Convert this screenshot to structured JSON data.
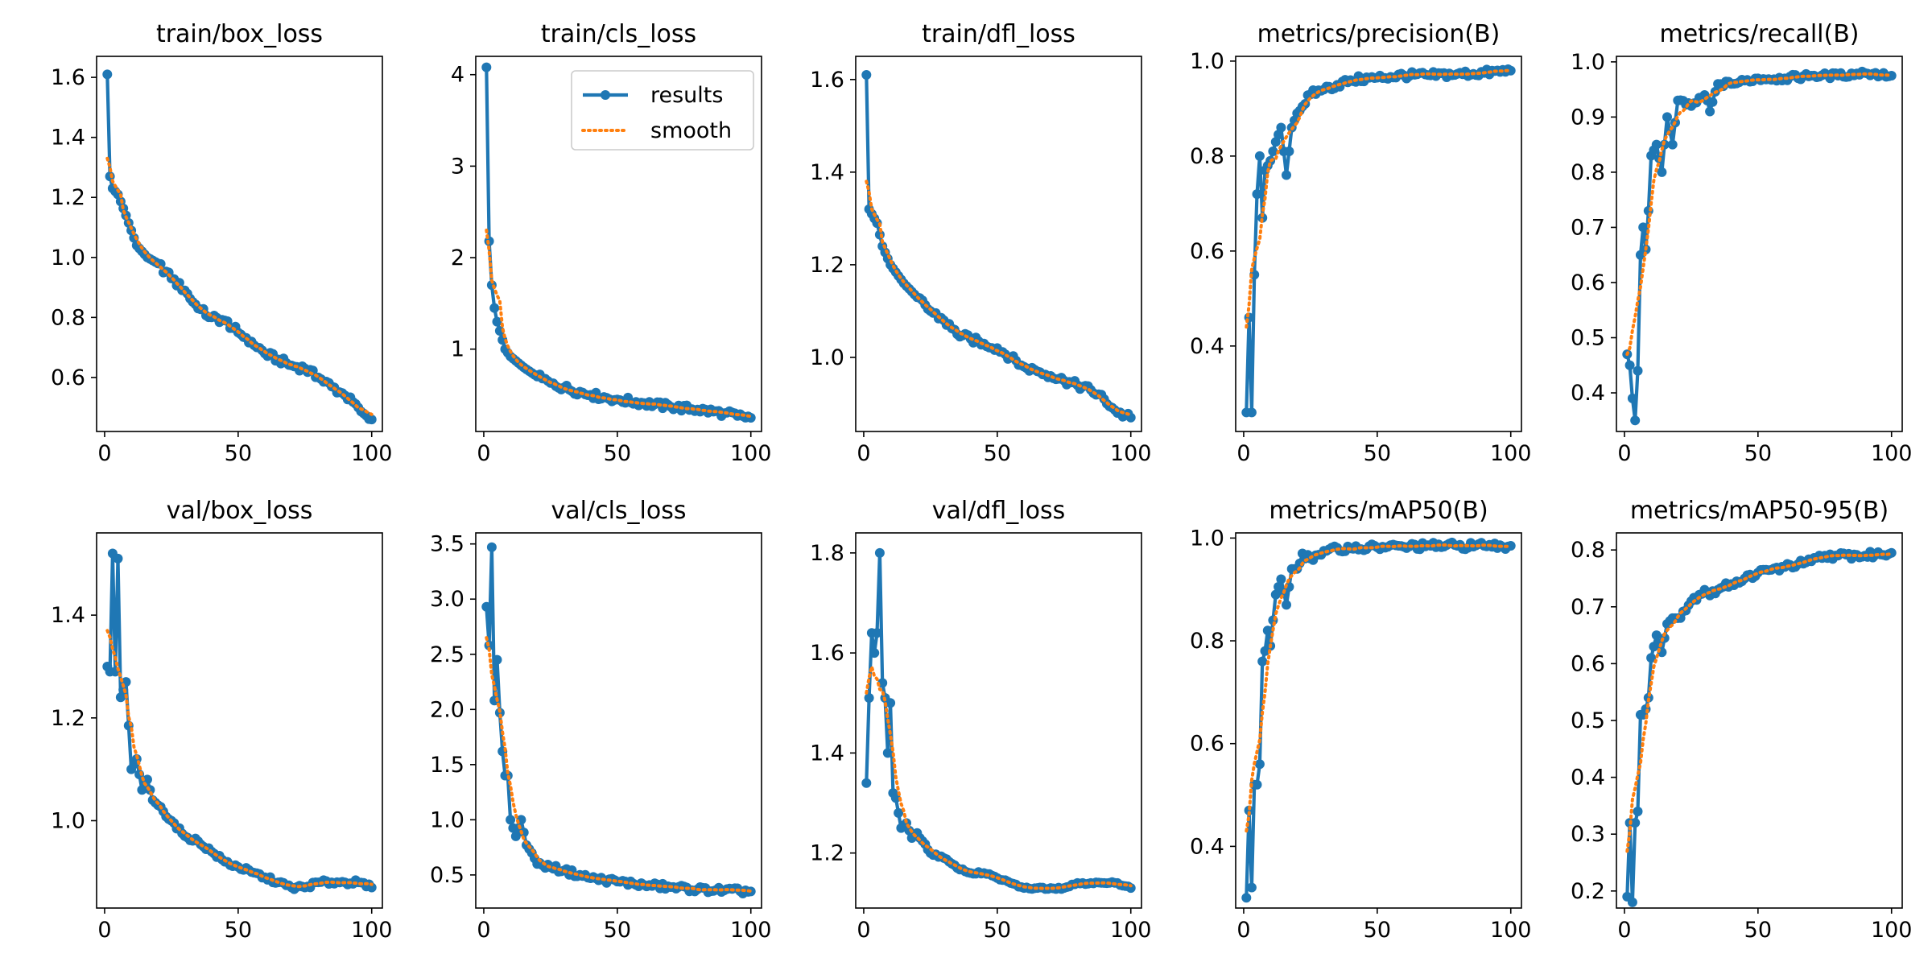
{
  "figure": {
    "background": "#ffffff",
    "results_color": "#1f77b4",
    "smooth_color": "#ff7f0e"
  },
  "legend": {
    "results_label": "results",
    "smooth_label": "smooth",
    "placement": "upper-right of train/cls_loss"
  },
  "chart_data": [
    {
      "type": "line",
      "title": "train/box_loss",
      "xlim": [
        -3,
        104
      ],
      "ylim": [
        0.42,
        1.67
      ],
      "xticks": [
        0,
        50,
        100
      ],
      "yticks": [
        0.6,
        0.8,
        1.0,
        1.2,
        1.4,
        1.6
      ],
      "ytick_labels": [
        "0.6",
        "0.8",
        "1.0",
        "1.2",
        "1.4",
        "1.6"
      ],
      "anchors": [
        [
          1,
          1.61
        ],
        [
          2,
          1.27
        ],
        [
          3,
          1.23
        ],
        [
          5,
          1.21
        ],
        [
          8,
          1.14
        ],
        [
          12,
          1.04
        ],
        [
          16,
          1.0
        ],
        [
          20,
          0.98
        ],
        [
          25,
          0.93
        ],
        [
          30,
          0.89
        ],
        [
          35,
          0.83
        ],
        [
          40,
          0.8
        ],
        [
          45,
          0.79
        ],
        [
          50,
          0.75
        ],
        [
          55,
          0.72
        ],
        [
          60,
          0.68
        ],
        [
          65,
          0.66
        ],
        [
          70,
          0.64
        ],
        [
          75,
          0.63
        ],
        [
          80,
          0.6
        ],
        [
          85,
          0.57
        ],
        [
          90,
          0.54
        ],
        [
          95,
          0.5
        ],
        [
          97,
          0.48
        ],
        [
          100,
          0.46
        ]
      ],
      "smooth_start": 1.33
    },
    {
      "type": "line",
      "title": "train/cls_loss",
      "xlim": [
        -3,
        104
      ],
      "ylim": [
        0.1,
        4.2
      ],
      "xticks": [
        0,
        50,
        100
      ],
      "yticks": [
        1,
        2,
        3,
        4
      ],
      "ytick_labels": [
        "1",
        "2",
        "3",
        "4"
      ],
      "anchors": [
        [
          1,
          4.08
        ],
        [
          2,
          2.18
        ],
        [
          3,
          1.7
        ],
        [
          4,
          1.45
        ],
        [
          5,
          1.3
        ],
        [
          6,
          1.2
        ],
        [
          8,
          1.0
        ],
        [
          10,
          0.92
        ],
        [
          15,
          0.8
        ],
        [
          20,
          0.7
        ],
        [
          25,
          0.63
        ],
        [
          30,
          0.58
        ],
        [
          40,
          0.5
        ],
        [
          50,
          0.45
        ],
        [
          60,
          0.41
        ],
        [
          70,
          0.37
        ],
        [
          80,
          0.34
        ],
        [
          90,
          0.3
        ],
        [
          95,
          0.27
        ],
        [
          100,
          0.25
        ]
      ],
      "smooth_start": 2.3
    },
    {
      "type": "line",
      "title": "train/dfl_loss",
      "xlim": [
        -3,
        104
      ],
      "ylim": [
        0.84,
        1.65
      ],
      "xticks": [
        0,
        50,
        100
      ],
      "yticks": [
        1.0,
        1.2,
        1.4,
        1.6
      ],
      "ytick_labels": [
        "1.0",
        "1.2",
        "1.4",
        "1.6"
      ],
      "anchors": [
        [
          1,
          1.61
        ],
        [
          2,
          1.32
        ],
        [
          3,
          1.31
        ],
        [
          5,
          1.29
        ],
        [
          7,
          1.24
        ],
        [
          10,
          1.2
        ],
        [
          15,
          1.16
        ],
        [
          20,
          1.13
        ],
        [
          25,
          1.1
        ],
        [
          30,
          1.08
        ],
        [
          35,
          1.05
        ],
        [
          40,
          1.04
        ],
        [
          45,
          1.03
        ],
        [
          50,
          1.02
        ],
        [
          55,
          1.0
        ],
        [
          60,
          0.98
        ],
        [
          65,
          0.97
        ],
        [
          70,
          0.96
        ],
        [
          75,
          0.95
        ],
        [
          80,
          0.94
        ],
        [
          85,
          0.93
        ],
        [
          90,
          0.91
        ],
        [
          95,
          0.88
        ],
        [
          100,
          0.87
        ]
      ],
      "smooth_start": 1.38
    },
    {
      "type": "line",
      "title": "metrics/precision(B)",
      "xlim": [
        -3,
        104
      ],
      "ylim": [
        0.22,
        1.01
      ],
      "xticks": [
        0,
        50,
        100
      ],
      "yticks": [
        0.4,
        0.6,
        0.8,
        1.0
      ],
      "ytick_labels": [
        "0.4",
        "0.6",
        "0.8",
        "1.0"
      ],
      "anchors": [
        [
          1,
          0.26
        ],
        [
          2,
          0.46
        ],
        [
          3,
          0.26
        ],
        [
          4,
          0.55
        ],
        [
          5,
          0.72
        ],
        [
          6,
          0.8
        ],
        [
          7,
          0.67
        ],
        [
          8,
          0.77
        ],
        [
          10,
          0.79
        ],
        [
          12,
          0.83
        ],
        [
          14,
          0.86
        ],
        [
          16,
          0.76
        ],
        [
          18,
          0.86
        ],
        [
          20,
          0.89
        ],
        [
          25,
          0.93
        ],
        [
          30,
          0.94
        ],
        [
          35,
          0.95
        ],
        [
          40,
          0.96
        ],
        [
          50,
          0.965
        ],
        [
          60,
          0.97
        ],
        [
          70,
          0.97
        ],
        [
          80,
          0.973
        ],
        [
          90,
          0.975
        ],
        [
          100,
          0.98
        ]
      ],
      "smooth_start": 0.44
    },
    {
      "type": "line",
      "title": "metrics/recall(B)",
      "xlim": [
        -3,
        104
      ],
      "ylim": [
        0.33,
        1.01
      ],
      "xticks": [
        0,
        50,
        100
      ],
      "yticks": [
        0.4,
        0.5,
        0.6,
        0.7,
        0.8,
        0.9,
        1.0
      ],
      "ytick_labels": [
        "0.4",
        "0.5",
        "0.6",
        "0.7",
        "0.8",
        "0.9",
        "1.0"
      ],
      "anchors": [
        [
          1,
          0.47
        ],
        [
          2,
          0.45
        ],
        [
          3,
          0.39
        ],
        [
          4,
          0.35
        ],
        [
          5,
          0.44
        ],
        [
          6,
          0.65
        ],
        [
          7,
          0.7
        ],
        [
          8,
          0.66
        ],
        [
          9,
          0.73
        ],
        [
          10,
          0.83
        ],
        [
          12,
          0.85
        ],
        [
          14,
          0.8
        ],
        [
          16,
          0.9
        ],
        [
          18,
          0.85
        ],
        [
          20,
          0.93
        ],
        [
          25,
          0.92
        ],
        [
          30,
          0.94
        ],
        [
          32,
          0.91
        ],
        [
          35,
          0.96
        ],
        [
          40,
          0.96
        ],
        [
          50,
          0.97
        ],
        [
          60,
          0.97
        ],
        [
          70,
          0.975
        ],
        [
          80,
          0.975
        ],
        [
          90,
          0.98
        ],
        [
          100,
          0.975
        ]
      ],
      "smooth_start": 0.47
    },
    {
      "type": "line",
      "title": "val/box_loss",
      "xlim": [
        -3,
        104
      ],
      "ylim": [
        0.83,
        1.56
      ],
      "xticks": [
        0,
        50,
        100
      ],
      "yticks": [
        1.0,
        1.2,
        1.4
      ],
      "ytick_labels": [
        "1.0",
        "1.2",
        "1.4"
      ],
      "anchors": [
        [
          1,
          1.3
        ],
        [
          2,
          1.29
        ],
        [
          3,
          1.52
        ],
        [
          4,
          1.29
        ],
        [
          5,
          1.51
        ],
        [
          6,
          1.24
        ],
        [
          8,
          1.27
        ],
        [
          10,
          1.1
        ],
        [
          12,
          1.12
        ],
        [
          14,
          1.06
        ],
        [
          16,
          1.08
        ],
        [
          18,
          1.04
        ],
        [
          20,
          1.03
        ],
        [
          25,
          1.0
        ],
        [
          30,
          0.97
        ],
        [
          35,
          0.96
        ],
        [
          40,
          0.94
        ],
        [
          45,
          0.92
        ],
        [
          50,
          0.91
        ],
        [
          55,
          0.9
        ],
        [
          60,
          0.89
        ],
        [
          65,
          0.88
        ],
        [
          70,
          0.87
        ],
        [
          75,
          0.87
        ],
        [
          80,
          0.88
        ],
        [
          85,
          0.88
        ],
        [
          90,
          0.88
        ],
        [
          95,
          0.88
        ],
        [
          100,
          0.87
        ]
      ],
      "smooth_start": 1.37
    },
    {
      "type": "line",
      "title": "val/cls_loss",
      "xlim": [
        -3,
        104
      ],
      "ylim": [
        0.2,
        3.6
      ],
      "xticks": [
        0,
        50,
        100
      ],
      "yticks": [
        0.5,
        1.0,
        1.5,
        2.0,
        2.5,
        3.0,
        3.5
      ],
      "ytick_labels": [
        "0.5",
        "1.0",
        "1.5",
        "2.0",
        "2.5",
        "3.0",
        "3.5"
      ],
      "anchors": [
        [
          1,
          2.93
        ],
        [
          2,
          2.58
        ],
        [
          3,
          3.47
        ],
        [
          4,
          2.08
        ],
        [
          5,
          2.45
        ],
        [
          6,
          1.97
        ],
        [
          7,
          1.62
        ],
        [
          8,
          1.4
        ],
        [
          9,
          1.4
        ],
        [
          10,
          1.0
        ],
        [
          12,
          0.85
        ],
        [
          14,
          1.0
        ],
        [
          16,
          0.77
        ],
        [
          18,
          0.7
        ],
        [
          20,
          0.6
        ],
        [
          25,
          0.57
        ],
        [
          30,
          0.54
        ],
        [
          40,
          0.47
        ],
        [
          50,
          0.44
        ],
        [
          60,
          0.41
        ],
        [
          70,
          0.39
        ],
        [
          80,
          0.37
        ],
        [
          90,
          0.36
        ],
        [
          100,
          0.35
        ]
      ],
      "smooth_start": 2.65
    },
    {
      "type": "line",
      "title": "val/dfl_loss",
      "xlim": [
        -3,
        104
      ],
      "ylim": [
        1.09,
        1.84
      ],
      "xticks": [
        0,
        50,
        100
      ],
      "yticks": [
        1.2,
        1.4,
        1.6,
        1.8
      ],
      "ytick_labels": [
        "1.2",
        "1.4",
        "1.6",
        "1.8"
      ],
      "anchors": [
        [
          1,
          1.34
        ],
        [
          2,
          1.51
        ],
        [
          3,
          1.64
        ],
        [
          4,
          1.6
        ],
        [
          5,
          1.64
        ],
        [
          6,
          1.8
        ],
        [
          7,
          1.54
        ],
        [
          8,
          1.51
        ],
        [
          9,
          1.4
        ],
        [
          10,
          1.5
        ],
        [
          11,
          1.32
        ],
        [
          12,
          1.31
        ],
        [
          14,
          1.25
        ],
        [
          16,
          1.26
        ],
        [
          18,
          1.23
        ],
        [
          20,
          1.24
        ],
        [
          25,
          1.2
        ],
        [
          30,
          1.19
        ],
        [
          35,
          1.17
        ],
        [
          40,
          1.16
        ],
        [
          45,
          1.16
        ],
        [
          50,
          1.15
        ],
        [
          55,
          1.14
        ],
        [
          60,
          1.13
        ],
        [
          65,
          1.13
        ],
        [
          70,
          1.13
        ],
        [
          75,
          1.13
        ],
        [
          80,
          1.14
        ],
        [
          85,
          1.14
        ],
        [
          90,
          1.14
        ],
        [
          95,
          1.14
        ],
        [
          100,
          1.13
        ]
      ],
      "smooth_start": 1.52
    },
    {
      "type": "line",
      "title": "metrics/mAP50(B)",
      "xlim": [
        -3,
        104
      ],
      "ylim": [
        0.28,
        1.01
      ],
      "xticks": [
        0,
        50,
        100
      ],
      "yticks": [
        0.4,
        0.6,
        0.8,
        1.0
      ],
      "ytick_labels": [
        "0.4",
        "0.6",
        "0.8",
        "1.0"
      ],
      "anchors": [
        [
          1,
          0.3
        ],
        [
          2,
          0.47
        ],
        [
          3,
          0.32
        ],
        [
          4,
          0.52
        ],
        [
          5,
          0.52
        ],
        [
          6,
          0.56
        ],
        [
          7,
          0.76
        ],
        [
          8,
          0.78
        ],
        [
          9,
          0.82
        ],
        [
          10,
          0.79
        ],
        [
          12,
          0.89
        ],
        [
          14,
          0.92
        ],
        [
          16,
          0.87
        ],
        [
          18,
          0.94
        ],
        [
          20,
          0.94
        ],
        [
          22,
          0.97
        ],
        [
          25,
          0.96
        ],
        [
          30,
          0.975
        ],
        [
          40,
          0.98
        ],
        [
          50,
          0.982
        ],
        [
          60,
          0.983
        ],
        [
          70,
          0.985
        ],
        [
          80,
          0.985
        ],
        [
          90,
          0.985
        ],
        [
          100,
          0.985
        ]
      ],
      "smooth_start": 0.43
    },
    {
      "type": "line",
      "title": "metrics/mAP50-95(B)",
      "xlim": [
        -3,
        104
      ],
      "ylim": [
        0.17,
        0.83
      ],
      "xticks": [
        0,
        50,
        100
      ],
      "yticks": [
        0.2,
        0.3,
        0.4,
        0.5,
        0.6,
        0.7,
        0.8
      ],
      "ytick_labels": [
        "0.2",
        "0.3",
        "0.4",
        "0.5",
        "0.6",
        "0.7",
        "0.8"
      ],
      "anchors": [
        [
          1,
          0.19
        ],
        [
          2,
          0.32
        ],
        [
          3,
          0.18
        ],
        [
          4,
          0.32
        ],
        [
          5,
          0.34
        ],
        [
          6,
          0.51
        ],
        [
          7,
          0.51
        ],
        [
          8,
          0.52
        ],
        [
          9,
          0.54
        ],
        [
          10,
          0.61
        ],
        [
          12,
          0.65
        ],
        [
          14,
          0.62
        ],
        [
          16,
          0.67
        ],
        [
          18,
          0.68
        ],
        [
          20,
          0.68
        ],
        [
          25,
          0.71
        ],
        [
          30,
          0.73
        ],
        [
          32,
          0.72
        ],
        [
          35,
          0.73
        ],
        [
          40,
          0.74
        ],
        [
          45,
          0.75
        ],
        [
          50,
          0.76
        ],
        [
          55,
          0.765
        ],
        [
          60,
          0.77
        ],
        [
          65,
          0.775
        ],
        [
          70,
          0.78
        ],
        [
          75,
          0.79
        ],
        [
          80,
          0.79
        ],
        [
          90,
          0.79
        ],
        [
          100,
          0.795
        ]
      ],
      "smooth_start": 0.27
    }
  ]
}
